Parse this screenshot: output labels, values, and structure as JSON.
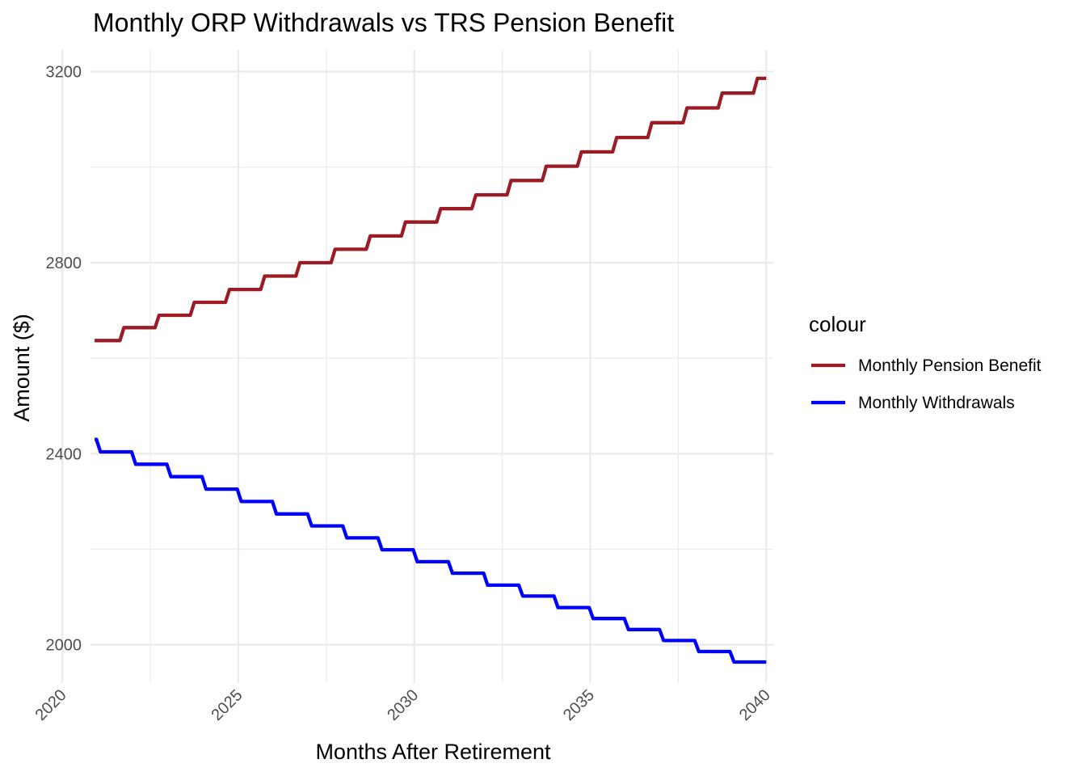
{
  "chart_data": {
    "type": "line",
    "title": "Monthly ORP Withdrawals vs TRS Pension Benefit",
    "xlabel": "Months After Retirement",
    "ylabel": "Amount ($)",
    "xlim": [
      2020.8,
      2040.2
    ],
    "ylim": [
      1920,
      3245
    ],
    "x_ticks": [
      "2020",
      "2025",
      "2030",
      "2035",
      "2040"
    ],
    "y_ticks": [
      "2000",
      "2400",
      "2800",
      "3200"
    ],
    "grid": true,
    "legend": {
      "title": "colour",
      "position": "right"
    },
    "series": [
      {
        "name": "Monthly Pension Benefit",
        "color": "#9b1c24",
        "steps": [
          [
            "2020-12",
            2637
          ],
          [
            "2021-10",
            2664
          ],
          [
            "2022-10",
            2690
          ],
          [
            "2023-10",
            2717
          ],
          [
            "2024-10",
            2744
          ],
          [
            "2025-10",
            2772
          ],
          [
            "2026-10",
            2800
          ],
          [
            "2027-10",
            2828
          ],
          [
            "2028-10",
            2856
          ],
          [
            "2029-10",
            2885
          ],
          [
            "2030-10",
            2913
          ],
          [
            "2031-10",
            2942
          ],
          [
            "2032-10",
            2972
          ],
          [
            "2033-10",
            3002
          ],
          [
            "2034-10",
            3032
          ],
          [
            "2035-10",
            3062
          ],
          [
            "2036-10",
            3093
          ],
          [
            "2037-10",
            3124
          ],
          [
            "2038-10",
            3155
          ],
          [
            "2039-10",
            3186
          ],
          [
            "2040-01",
            3186
          ]
        ]
      },
      {
        "name": "Monthly Withdrawals",
        "color": "#0000ff",
        "steps": [
          [
            "2020-12",
            2430
          ],
          [
            "2021-02",
            2404
          ],
          [
            "2022-02",
            2378
          ],
          [
            "2023-02",
            2352
          ],
          [
            "2024-02",
            2326
          ],
          [
            "2025-02",
            2300
          ],
          [
            "2026-02",
            2274
          ],
          [
            "2027-02",
            2249
          ],
          [
            "2028-02",
            2224
          ],
          [
            "2029-02",
            2199
          ],
          [
            "2030-02",
            2174
          ],
          [
            "2031-02",
            2150
          ],
          [
            "2032-02",
            2125
          ],
          [
            "2033-02",
            2102
          ],
          [
            "2034-02",
            2078
          ],
          [
            "2035-02",
            2055
          ],
          [
            "2036-02",
            2032
          ],
          [
            "2037-02",
            2009
          ],
          [
            "2038-02",
            1986
          ],
          [
            "2039-02",
            1964
          ],
          [
            "2040-01",
            1964
          ]
        ]
      }
    ]
  }
}
